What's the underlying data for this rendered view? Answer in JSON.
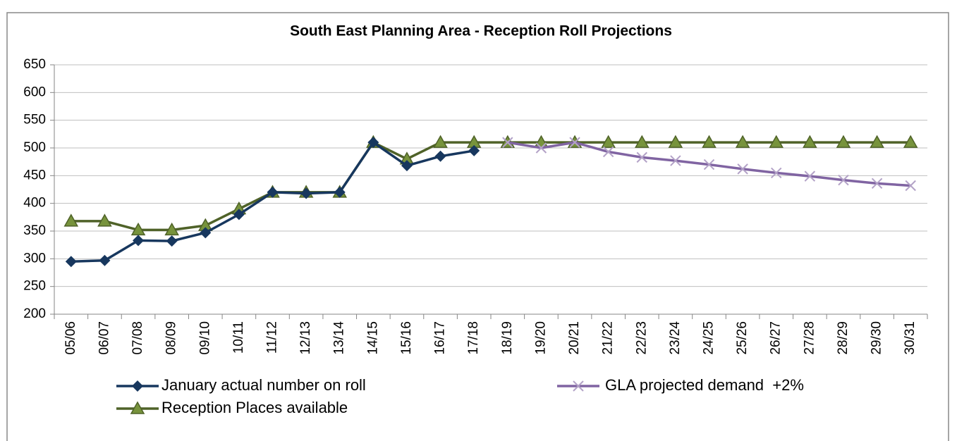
{
  "chart_data": {
    "type": "line",
    "title": "South East Planning Area - Reception Roll Projections",
    "categories": [
      "05/06",
      "06/07",
      "07/08",
      "08/09",
      "09/10",
      "10/11",
      "11/12",
      "12/13",
      "13/14",
      "14/15",
      "15/16",
      "16/17",
      "17/18",
      "18/19",
      "19/20",
      "20/21",
      "21/22",
      "22/23",
      "23/24",
      "24/25",
      "25/26",
      "26/27",
      "27/28",
      "28/29",
      "29/30",
      "30/31"
    ],
    "series": [
      {
        "name": "Reception Places available",
        "color": "#4f6228",
        "marker": "triangle",
        "values": [
          368,
          368,
          352,
          352,
          360,
          390,
          420,
          420,
          420,
          510,
          480,
          510,
          510,
          510,
          510,
          510,
          510,
          510,
          510,
          510,
          510,
          510,
          510,
          510,
          510,
          510
        ]
      },
      {
        "name": "January actual number on roll",
        "color": "#17375e",
        "marker": "diamond",
        "values": [
          295,
          297,
          333,
          332,
          347,
          380,
          420,
          418,
          420,
          510,
          468,
          485,
          495,
          null,
          null,
          null,
          null,
          null,
          null,
          null,
          null,
          null,
          null,
          null,
          null,
          null
        ]
      },
      {
        "name": "GLA projected demand  +2%",
        "color": "#8064a2",
        "marker": "x",
        "values": [
          null,
          null,
          null,
          null,
          null,
          null,
          null,
          null,
          null,
          null,
          null,
          null,
          null,
          510,
          500,
          510,
          493,
          483,
          477,
          470,
          462,
          455,
          449,
          442,
          436,
          432
        ]
      }
    ],
    "ylim": [
      200,
      650
    ],
    "yticks": [
      200,
      250,
      300,
      350,
      400,
      450,
      500,
      550,
      600,
      650
    ],
    "grid": true
  }
}
